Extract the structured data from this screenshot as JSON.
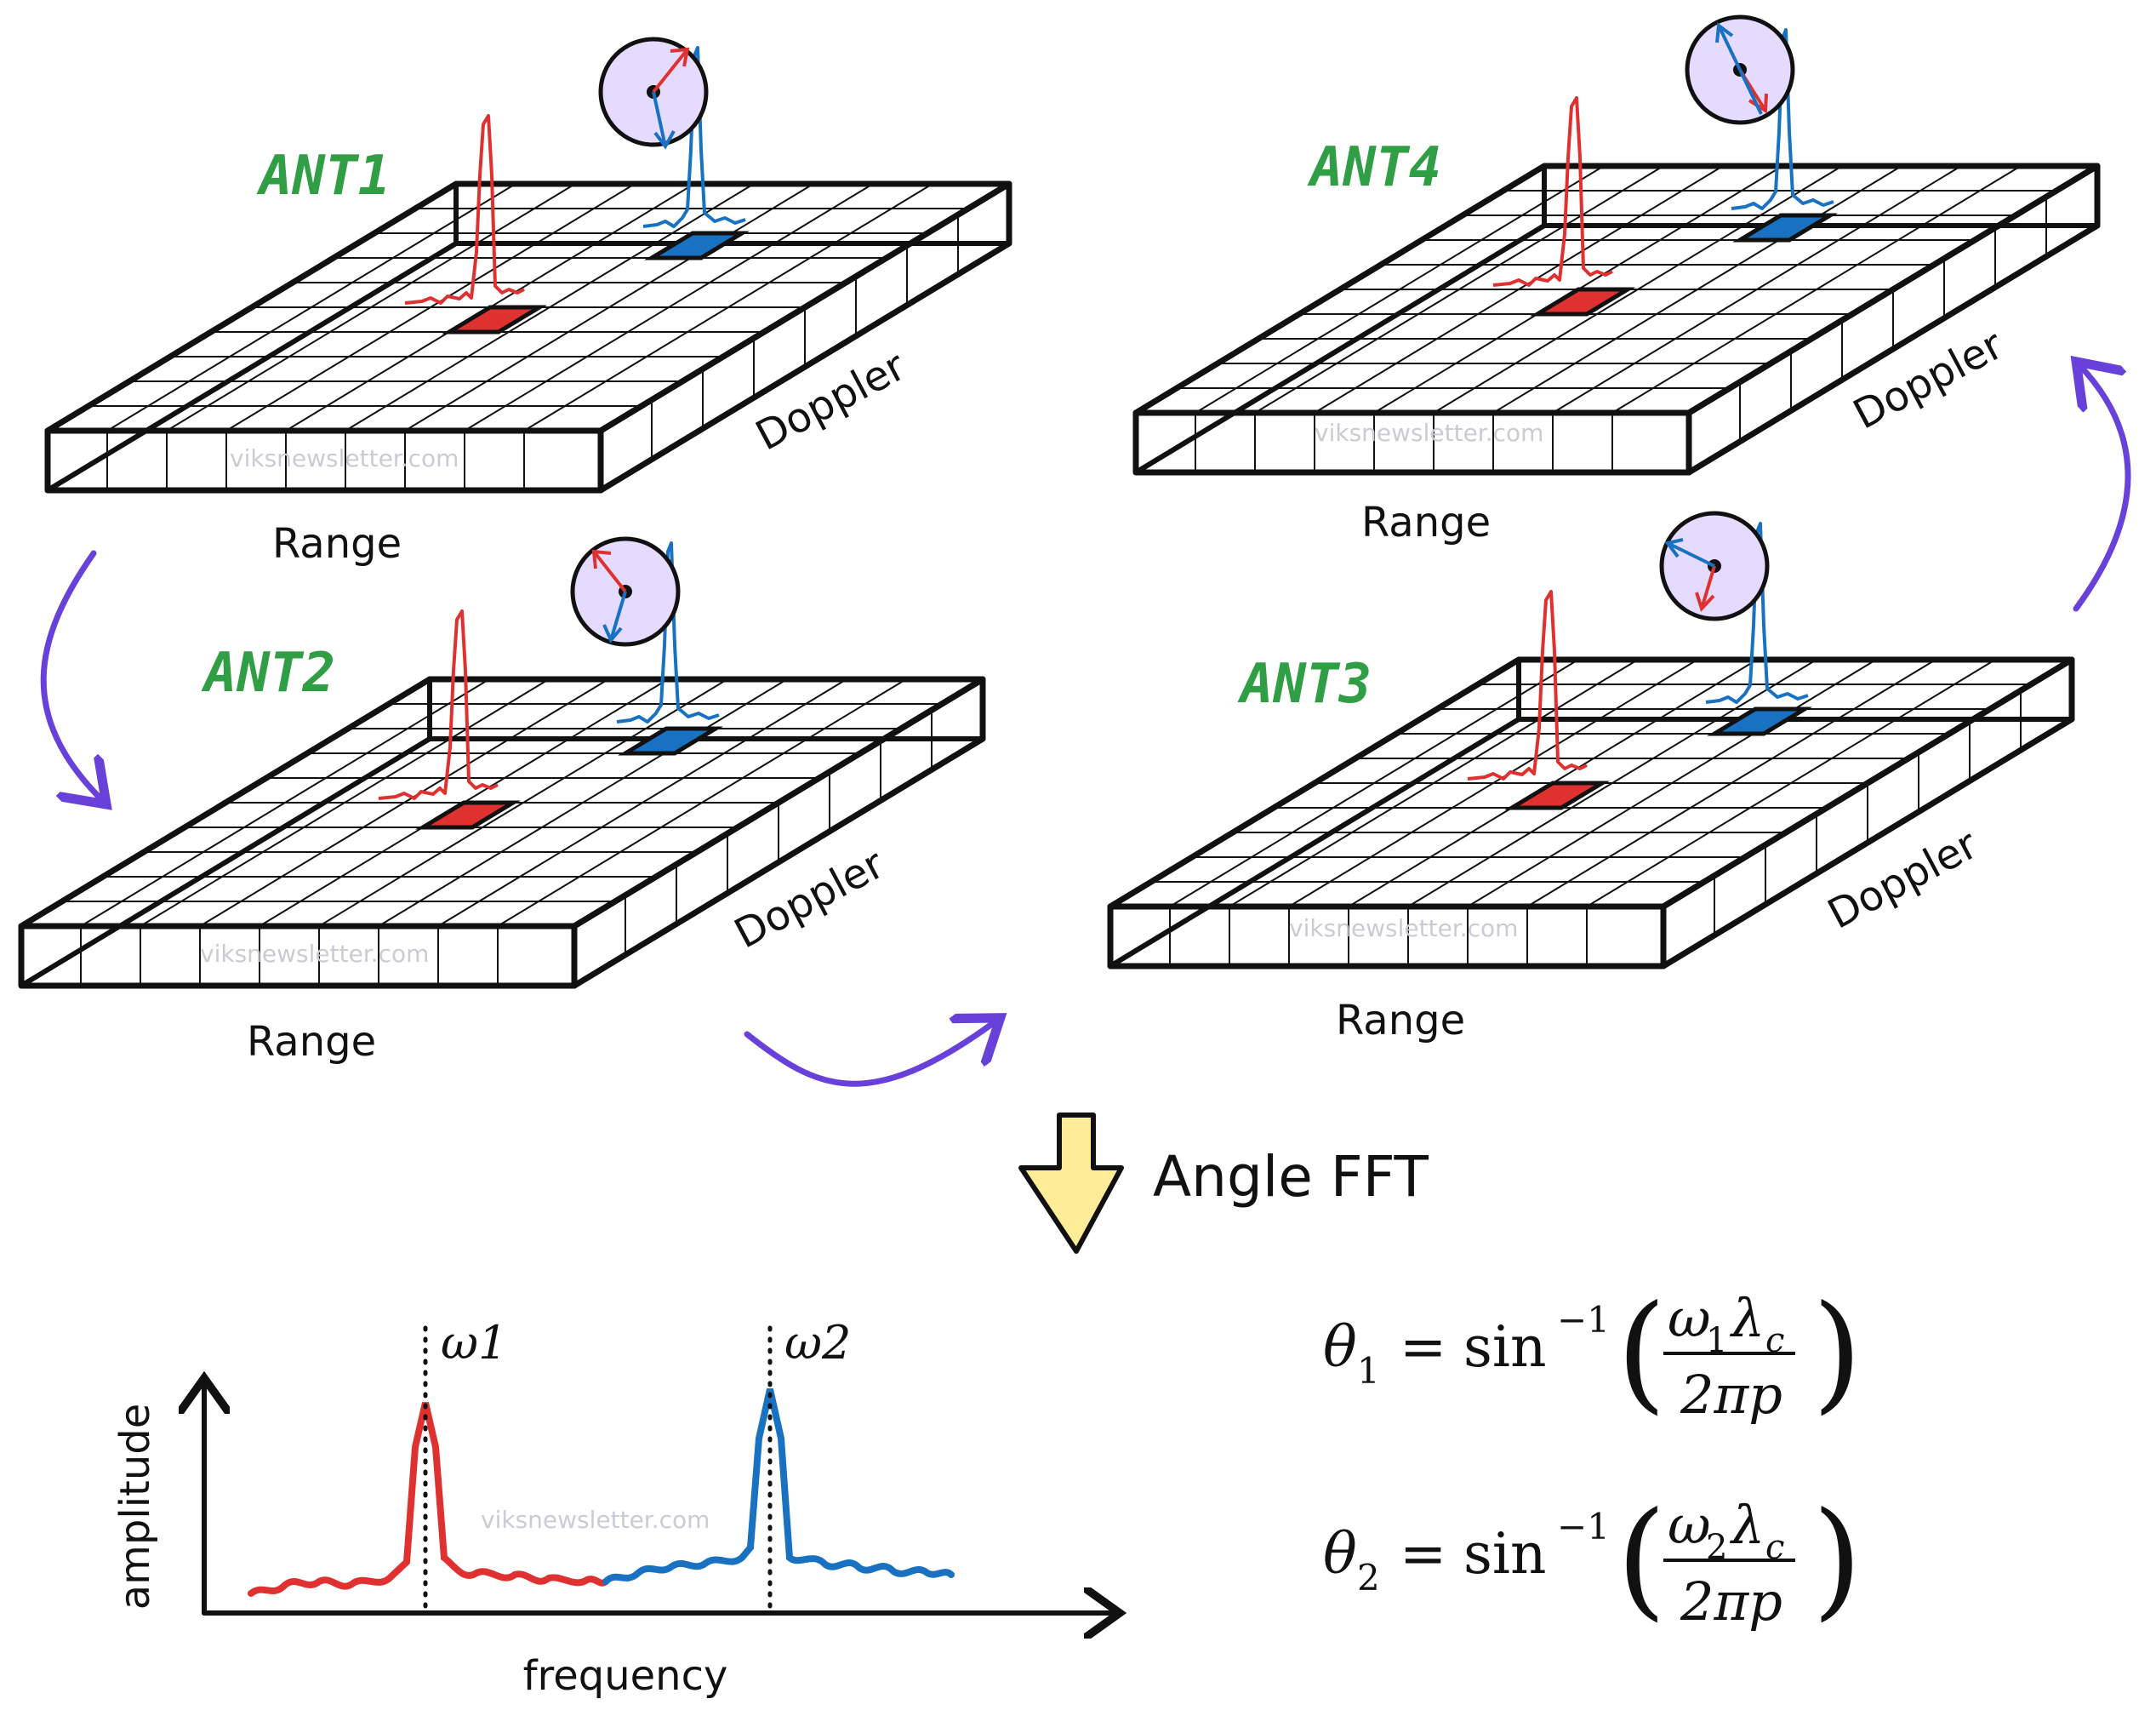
{
  "antennas": [
    {
      "label": "ANT1",
      "range_label": "Range",
      "doppler_label": "Doppler",
      "watermark": "viksnewsletter.com"
    },
    {
      "label": "ANT2",
      "range_label": "Range",
      "doppler_label": "Doppler",
      "watermark": "viksnewsletter.com"
    },
    {
      "label": "ANT3",
      "range_label": "Range",
      "doppler_label": "Doppler",
      "watermark": "viksnewsletter.com"
    },
    {
      "label": "ANT4",
      "range_label": "Range",
      "doppler_label": "Doppler",
      "watermark": "viksnewsletter.com"
    }
  ],
  "step_label": "Angle FFT",
  "spectrum": {
    "y_axis_label": "amplitude",
    "x_axis_label": "frequency",
    "peak1_label": "ω1",
    "peak2_label": "ω2",
    "watermark": "viksnewsletter.com"
  },
  "equations": [
    {
      "lhs": "θ",
      "lhs_sub": "1",
      "fn": "sin",
      "fn_sup": "−1",
      "num": "ω",
      "num_sub": "1",
      "num_lambda": "λ",
      "num_lambda_sub": "c",
      "den": "2πp"
    },
    {
      "lhs": "θ",
      "lhs_sub": "2",
      "fn": "sin",
      "fn_sup": "−1",
      "num": "ω",
      "num_sub": "2",
      "num_lambda": "λ",
      "num_lambda_sub": "c",
      "den": "2πp"
    }
  ],
  "colors": {
    "ant_label": "#2f9e44",
    "target1": "#e03131",
    "target2": "#1971c2",
    "flow_arrow": "#6741d9",
    "step_arrow": "#ffec99",
    "phasor_bg": "#e5dbff"
  }
}
